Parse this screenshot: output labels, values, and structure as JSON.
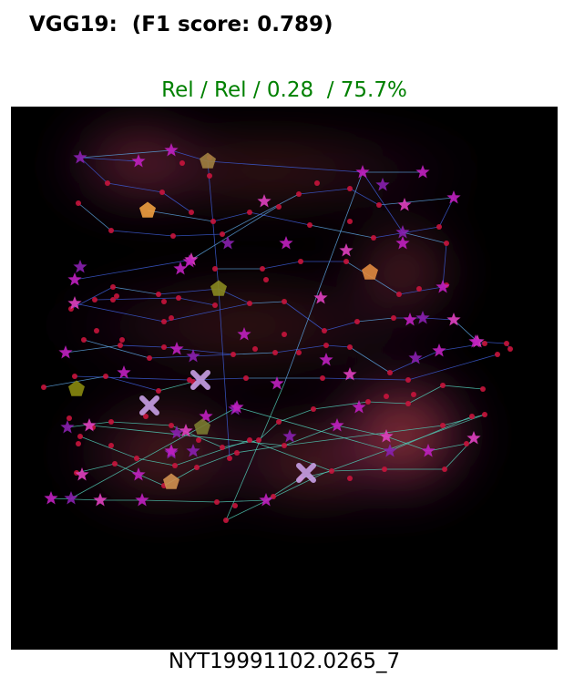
{
  "chart_data": {
    "type": "scatter",
    "title": "VGG19:  (F1 score: 0.789)",
    "subtitle": "Rel / Rel / 0.28  / 75.7%",
    "xlabel": "NYT19991102.0265_7",
    "ylabel": "",
    "xlim": [
      0,
      600
    ],
    "ylim": [
      596,
      0
    ],
    "grid": false,
    "legend": "none",
    "colors": {
      "title": "#000000",
      "subtitle": "#008000",
      "background": "#000000",
      "heat_glow": "#c8501e",
      "heat_mid": "#5a1a6e",
      "dot": "#c8143c",
      "star": "#c020c0",
      "pentagon": "#c8963c",
      "cross": "#c8a0e6",
      "edge": "#3c5ad2"
    },
    "heat_regions": [
      {
        "x": 140,
        "y": 60,
        "rx": 90,
        "ry": 55,
        "level": 0.55
      },
      {
        "x": 430,
        "y": 180,
        "rx": 70,
        "ry": 60,
        "level": 0.5
      },
      {
        "x": 430,
        "y": 360,
        "rx": 90,
        "ry": 80,
        "level": 0.85
      },
      {
        "x": 170,
        "y": 380,
        "rx": 120,
        "ry": 70,
        "level": 0.45
      },
      {
        "x": 330,
        "y": 390,
        "rx": 110,
        "ry": 55,
        "level": 0.5
      },
      {
        "x": 280,
        "y": 70,
        "rx": 260,
        "ry": 45,
        "level": 0.35
      },
      {
        "x": 260,
        "y": 240,
        "rx": 240,
        "ry": 60,
        "level": 0.3
      }
    ],
    "stars": [
      [
        76,
        56
      ],
      [
        140,
        60
      ],
      [
        176,
        48
      ],
      [
        278,
        104
      ],
      [
        238,
        150
      ],
      [
        302,
        150
      ],
      [
        368,
        158
      ],
      [
        386,
        72
      ],
      [
        408,
        86
      ],
      [
        432,
        108
      ],
      [
        452,
        72
      ],
      [
        486,
        100
      ],
      [
        430,
        138
      ],
      [
        430,
        150
      ],
      [
        474,
        198
      ],
      [
        486,
        234
      ],
      [
        452,
        232
      ],
      [
        438,
        234
      ],
      [
        512,
        258
      ],
      [
        470,
        268
      ],
      [
        444,
        276
      ],
      [
        372,
        294
      ],
      [
        346,
        278
      ],
      [
        256,
        250
      ],
      [
        200,
        274
      ],
      [
        182,
        266
      ],
      [
        124,
        292
      ],
      [
        86,
        350
      ],
      [
        62,
        352
      ],
      [
        60,
        270
      ],
      [
        70,
        216
      ],
      [
        70,
        190
      ],
      [
        76,
        176
      ],
      [
        198,
        168
      ],
      [
        196,
        170
      ],
      [
        186,
        178
      ],
      [
        246,
        332
      ],
      [
        248,
        330
      ],
      [
        214,
        340
      ],
      [
        192,
        356
      ],
      [
        176,
        380
      ],
      [
        140,
        404
      ],
      [
        78,
        404
      ],
      [
        44,
        430
      ],
      [
        66,
        430
      ],
      [
        98,
        432
      ],
      [
        144,
        432
      ],
      [
        280,
        432
      ],
      [
        306,
        362
      ],
      [
        358,
        350
      ],
      [
        382,
        330
      ],
      [
        412,
        362
      ],
      [
        416,
        378
      ],
      [
        458,
        378
      ],
      [
        508,
        364
      ],
      [
        292,
        304
      ],
      [
        182,
        358
      ],
      [
        340,
        210
      ],
      [
        510,
        258
      ],
      [
        176,
        378
      ],
      [
        200,
        378
      ]
    ],
    "dots": [
      [
        106,
        84
      ],
      [
        166,
        94
      ],
      [
        198,
        116
      ],
      [
        188,
        62
      ],
      [
        218,
        56
      ],
      [
        218,
        76
      ],
      [
        74,
        106
      ],
      [
        110,
        136
      ],
      [
        178,
        142
      ],
      [
        232,
        140
      ],
      [
        316,
        96
      ],
      [
        336,
        84
      ],
      [
        372,
        90
      ],
      [
        404,
        108
      ],
      [
        470,
        132
      ],
      [
        478,
        150
      ],
      [
        398,
        144
      ],
      [
        372,
        126
      ],
      [
        328,
        130
      ],
      [
        294,
        110
      ],
      [
        262,
        116
      ],
      [
        222,
        126
      ],
      [
        224,
        178
      ],
      [
        276,
        178
      ],
      [
        280,
        190
      ],
      [
        318,
        170
      ],
      [
        368,
        170
      ],
      [
        426,
        206
      ],
      [
        448,
        200
      ],
      [
        478,
        196
      ],
      [
        420,
        232
      ],
      [
        380,
        236
      ],
      [
        344,
        246
      ],
      [
        300,
        214
      ],
      [
        262,
        216
      ],
      [
        224,
        218
      ],
      [
        184,
        210
      ],
      [
        162,
        206
      ],
      [
        112,
        198
      ],
      [
        66,
        222
      ],
      [
        92,
        212
      ],
      [
        112,
        212
      ],
      [
        120,
        262
      ],
      [
        168,
        264
      ],
      [
        244,
        272
      ],
      [
        290,
        270
      ],
      [
        346,
        262
      ],
      [
        372,
        264
      ],
      [
        416,
        292
      ],
      [
        442,
        316
      ],
      [
        506,
        340
      ],
      [
        520,
        338
      ],
      [
        474,
        306
      ],
      [
        436,
        326
      ],
      [
        392,
        324
      ],
      [
        332,
        332
      ],
      [
        294,
        346
      ],
      [
        272,
        366
      ],
      [
        248,
        380
      ],
      [
        232,
        374
      ],
      [
        206,
        366
      ],
      [
        176,
        350
      ],
      [
        148,
        340
      ],
      [
        110,
        346
      ],
      [
        90,
        352
      ],
      [
        76,
        362
      ],
      [
        72,
        402
      ],
      [
        114,
        392
      ],
      [
        168,
        416
      ],
      [
        226,
        434
      ],
      [
        246,
        438
      ],
      [
        288,
        428
      ],
      [
        318,
        408
      ],
      [
        352,
        400
      ],
      [
        372,
        408
      ],
      [
        410,
        398
      ],
      [
        476,
        398
      ],
      [
        474,
        350
      ],
      [
        500,
        370
      ],
      [
        544,
        260
      ],
      [
        534,
        272
      ],
      [
        518,
        310
      ],
      [
        436,
        300
      ],
      [
        342,
        298
      ],
      [
        316,
        270
      ],
      [
        258,
        298
      ],
      [
        200,
        302
      ],
      [
        162,
        312
      ],
      [
        104,
        296
      ],
      [
        70,
        296
      ],
      [
        36,
        308
      ],
      [
        80,
        256
      ],
      [
        94,
        246
      ],
      [
        122,
        256
      ],
      [
        152,
        276
      ],
      [
        236,
        454
      ],
      [
        240,
        386
      ],
      [
        262,
        366
      ],
      [
        64,
        342
      ],
      [
        74,
        370
      ],
      [
        110,
        372
      ],
      [
        138,
        386
      ],
      [
        180,
        394
      ],
      [
        204,
        396
      ],
      [
        300,
        372
      ],
      [
        412,
        318
      ],
      [
        520,
        260
      ],
      [
        548,
        266
      ],
      [
        168,
        214
      ],
      [
        168,
        236
      ],
      [
        176,
        232
      ],
      [
        196,
        300
      ],
      [
        116,
        208
      ],
      [
        268,
        266
      ],
      [
        300,
        250
      ]
    ],
    "pentagons": [
      [
        216,
        60
      ],
      [
        150,
        114
      ],
      [
        394,
        182
      ],
      [
        228,
        200
      ],
      [
        72,
        310
      ],
      [
        210,
        352
      ],
      [
        176,
        412
      ]
    ],
    "crosses": [
      [
        208,
        300
      ],
      [
        152,
        328
      ],
      [
        324,
        402
      ]
    ],
    "edges": [
      [
        76,
        56,
        176,
        48
      ],
      [
        176,
        48,
        216,
        60
      ],
      [
        216,
        60,
        386,
        72
      ],
      [
        386,
        72,
        452,
        72
      ],
      [
        106,
        84,
        166,
        94
      ],
      [
        166,
        94,
        198,
        116
      ],
      [
        74,
        106,
        110,
        136
      ],
      [
        110,
        136,
        178,
        142
      ],
      [
        178,
        142,
        232,
        140
      ],
      [
        232,
        140,
        316,
        96
      ],
      [
        316,
        96,
        372,
        90
      ],
      [
        372,
        90,
        404,
        108
      ],
      [
        404,
        108,
        486,
        100
      ],
      [
        486,
        100,
        470,
        132
      ],
      [
        470,
        132,
        398,
        144
      ],
      [
        398,
        144,
        328,
        130
      ],
      [
        328,
        130,
        262,
        116
      ],
      [
        262,
        116,
        222,
        126
      ],
      [
        222,
        126,
        150,
        114
      ],
      [
        140,
        60,
        76,
        56
      ],
      [
        76,
        56,
        106,
        84
      ],
      [
        224,
        178,
        276,
        178
      ],
      [
        276,
        178,
        318,
        170
      ],
      [
        318,
        170,
        368,
        170
      ],
      [
        368,
        170,
        426,
        206
      ],
      [
        426,
        206,
        474,
        198
      ],
      [
        474,
        198,
        478,
        150
      ],
      [
        478,
        150,
        430,
        138
      ],
      [
        430,
        138,
        386,
        72
      ],
      [
        66,
        222,
        112,
        198
      ],
      [
        112,
        198,
        162,
        206
      ],
      [
        162,
        206,
        228,
        200
      ],
      [
        228,
        200,
        262,
        216
      ],
      [
        262,
        216,
        300,
        214
      ],
      [
        300,
        214,
        344,
        246
      ],
      [
        344,
        246,
        380,
        236
      ],
      [
        380,
        236,
        420,
        232
      ],
      [
        420,
        232,
        452,
        232
      ],
      [
        452,
        232,
        486,
        234
      ],
      [
        486,
        234,
        512,
        258
      ],
      [
        512,
        258,
        544,
        260
      ],
      [
        544,
        260,
        548,
        266
      ],
      [
        60,
        270,
        120,
        262
      ],
      [
        120,
        262,
        168,
        264
      ],
      [
        168,
        264,
        244,
        272
      ],
      [
        244,
        272,
        290,
        270
      ],
      [
        290,
        270,
        346,
        262
      ],
      [
        346,
        262,
        372,
        264
      ],
      [
        372,
        264,
        416,
        292
      ],
      [
        416,
        292,
        470,
        268
      ],
      [
        470,
        268,
        520,
        260
      ],
      [
        62,
        352,
        110,
        346
      ],
      [
        110,
        346,
        176,
        350
      ],
      [
        176,
        350,
        232,
        374
      ],
      [
        232,
        374,
        272,
        366
      ],
      [
        272,
        366,
        294,
        346
      ],
      [
        294,
        346,
        332,
        332
      ],
      [
        332,
        332,
        392,
        324
      ],
      [
        392,
        324,
        436,
        326
      ],
      [
        436,
        326,
        474,
        306
      ],
      [
        474,
        306,
        518,
        310
      ],
      [
        44,
        430,
        98,
        432
      ],
      [
        98,
        432,
        144,
        432
      ],
      [
        144,
        432,
        226,
        434
      ],
      [
        226,
        434,
        280,
        432
      ],
      [
        280,
        432,
        318,
        408
      ],
      [
        318,
        408,
        352,
        400
      ],
      [
        352,
        400,
        410,
        398
      ],
      [
        410,
        398,
        476,
        398
      ],
      [
        476,
        398,
        508,
        364
      ],
      [
        72,
        402,
        114,
        392
      ],
      [
        114,
        392,
        168,
        416
      ],
      [
        168,
        416,
        204,
        396
      ],
      [
        204,
        396,
        246,
        380
      ],
      [
        246,
        380,
        300,
        372
      ],
      [
        300,
        372,
        358,
        350
      ],
      [
        358,
        350,
        412,
        362
      ],
      [
        412,
        362,
        458,
        378
      ],
      [
        458,
        378,
        500,
        370
      ],
      [
        216,
        60,
        228,
        200
      ],
      [
        228,
        200,
        240,
        386
      ],
      [
        386,
        72,
        300,
        304
      ],
      [
        300,
        304,
        236,
        454
      ],
      [
        236,
        454,
        344,
        402
      ],
      [
        344,
        402,
        520,
        338
      ],
      [
        66,
        430,
        248,
        330
      ],
      [
        248,
        330,
        416,
        378
      ],
      [
        416,
        378,
        506,
        340
      ],
      [
        70,
        296,
        196,
        300
      ],
      [
        196,
        300,
        258,
        298
      ],
      [
        258,
        298,
        342,
        298
      ],
      [
        342,
        298,
        436,
        300
      ],
      [
        436,
        300,
        534,
        272
      ],
      [
        36,
        308,
        104,
        296
      ],
      [
        104,
        296,
        162,
        312
      ],
      [
        162,
        312,
        200,
        302
      ],
      [
        76,
        362,
        138,
        386
      ],
      [
        138,
        386,
        180,
        394
      ],
      [
        180,
        394,
        262,
        366
      ],
      [
        262,
        366,
        352,
        400
      ],
      [
        88,
        350,
        300,
        372
      ],
      [
        300,
        372,
        474,
        350
      ],
      [
        474,
        350,
        520,
        338
      ],
      [
        92,
        212,
        184,
        210
      ],
      [
        184,
        210,
        224,
        218
      ],
      [
        80,
        256,
        152,
        276
      ],
      [
        152,
        276,
        244,
        272
      ],
      [
        70,
        190,
        198,
        168
      ],
      [
        198,
        168,
        292,
        110
      ],
      [
        70,
        216,
        168,
        236
      ],
      [
        168,
        236,
        262,
        216
      ]
    ]
  }
}
